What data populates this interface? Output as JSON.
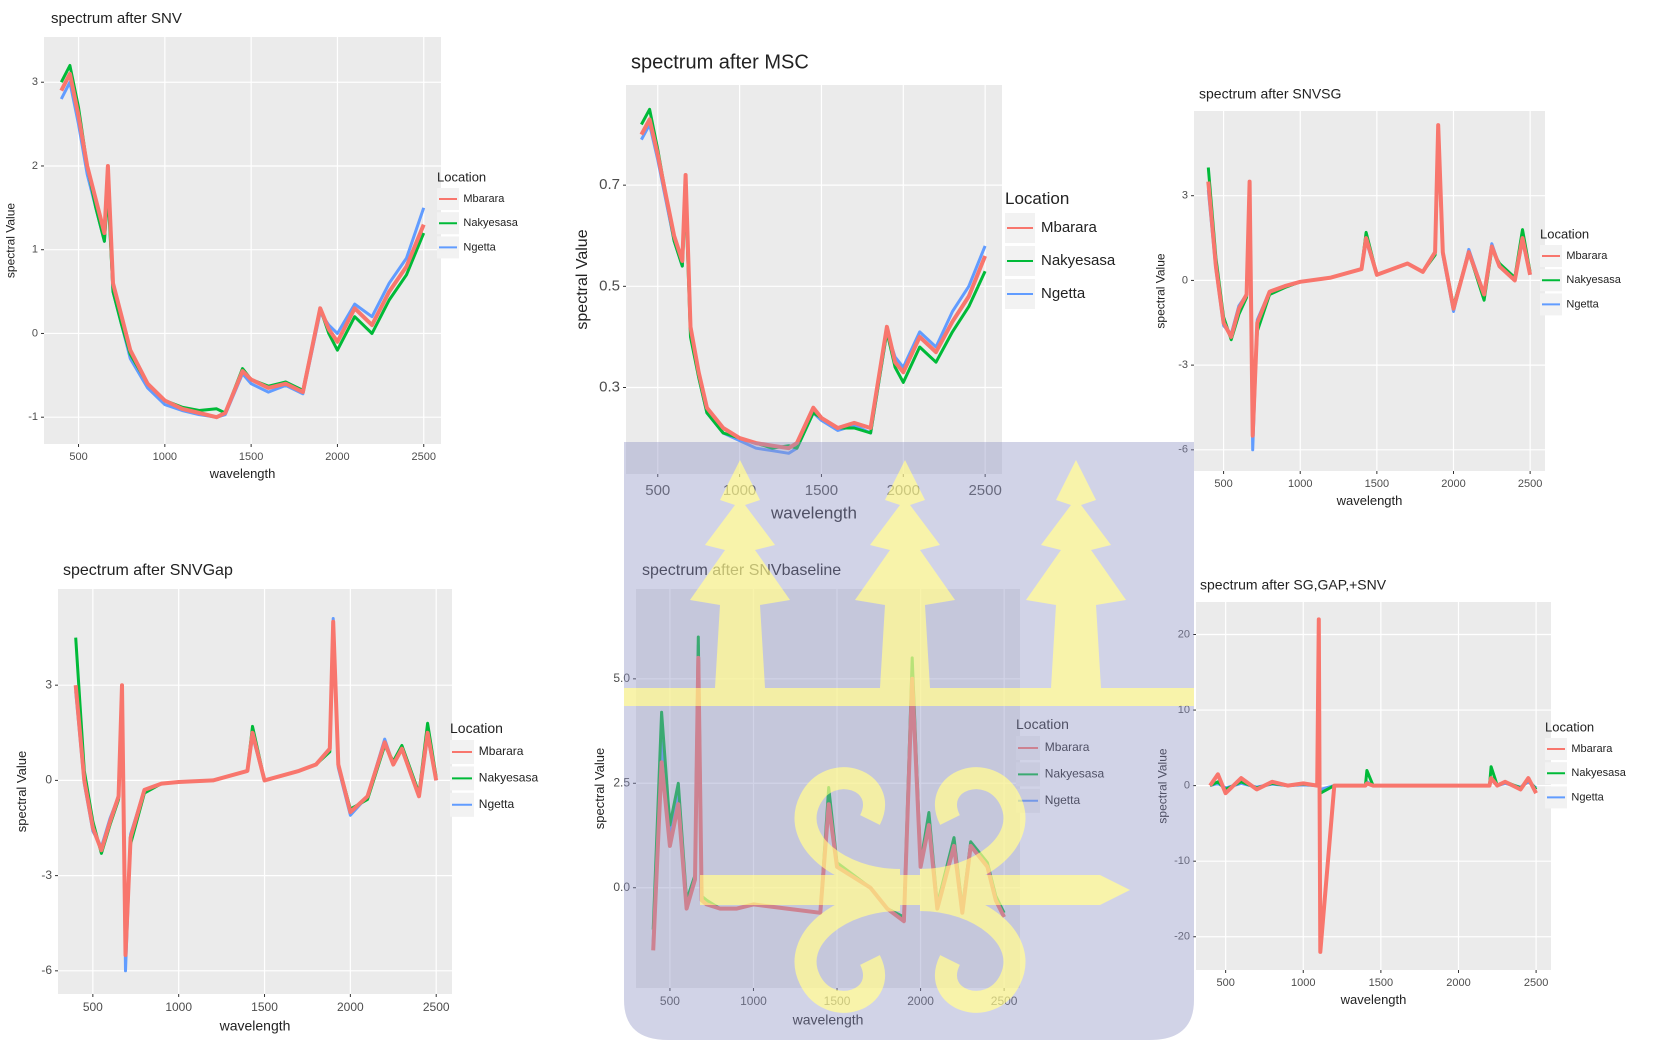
{
  "chart_data": [
    {
      "type": "line",
      "title": "spectrum after SNV",
      "x_label": "wavelength",
      "y_label": "spectral Value",
      "legend_title": "Location",
      "grid": true,
      "xlim": [
        300,
        2600
      ],
      "xticks": [
        500,
        1000,
        1500,
        2000,
        2500
      ],
      "ylim": [
        -1.32,
        3.54
      ],
      "yticks": [
        -1,
        0,
        1,
        2,
        3
      ],
      "x": [
        400,
        450,
        500,
        550,
        600,
        650,
        670,
        700,
        750,
        800,
        900,
        1000,
        1100,
        1200,
        1300,
        1350,
        1450,
        1500,
        1600,
        1700,
        1800,
        1900,
        1950,
        2000,
        2100,
        2200,
        2300,
        2400,
        2500
      ],
      "series": [
        {
          "name": "Mbarara",
          "color": "#F8766D",
          "values": [
            2.9,
            3.1,
            2.6,
            2.0,
            1.6,
            1.2,
            2.0,
            0.6,
            0.2,
            -0.2,
            -0.6,
            -0.8,
            -0.9,
            -0.95,
            -1.0,
            -0.95,
            -0.45,
            -0.55,
            -0.65,
            -0.6,
            -0.7,
            0.3,
            0.05,
            -0.1,
            0.3,
            0.1,
            0.5,
            0.8,
            1.3
          ]
        },
        {
          "name": "Nakyesasa",
          "color": "#00BA38",
          "values": [
            3.0,
            3.2,
            2.7,
            2.0,
            1.5,
            1.1,
            1.7,
            0.5,
            0.1,
            -0.25,
            -0.6,
            -0.8,
            -0.88,
            -0.92,
            -0.9,
            -0.95,
            -0.42,
            -0.55,
            -0.63,
            -0.58,
            -0.68,
            0.3,
            0.0,
            -0.2,
            0.2,
            0.0,
            0.4,
            0.7,
            1.2
          ]
        },
        {
          "name": "Ngetta",
          "color": "#619CFF",
          "values": [
            2.8,
            3.0,
            2.5,
            1.9,
            1.5,
            1.1,
            1.8,
            0.5,
            0.1,
            -0.3,
            -0.65,
            -0.85,
            -0.92,
            -0.97,
            -1.0,
            -0.97,
            -0.48,
            -0.6,
            -0.7,
            -0.62,
            -0.72,
            0.25,
            0.1,
            0.0,
            0.35,
            0.2,
            0.6,
            0.9,
            1.5
          ]
        }
      ]
    },
    {
      "type": "line",
      "title": "spectrum after MSC",
      "x_label": "wavelength",
      "y_label": "spectral Value",
      "legend_title": "Location",
      "grid": true,
      "xlim": [
        306,
        2603
      ],
      "xticks": [
        500,
        1000,
        1500,
        2000,
        2500
      ],
      "ylim": [
        0.129,
        0.898
      ],
      "yticks": [
        0.3,
        0.5,
        0.7
      ],
      "x": [
        400,
        450,
        500,
        550,
        600,
        650,
        670,
        700,
        750,
        800,
        900,
        1000,
        1100,
        1200,
        1300,
        1350,
        1450,
        1500,
        1600,
        1700,
        1800,
        1900,
        1950,
        2000,
        2100,
        2200,
        2300,
        2400,
        2500
      ],
      "series": [
        {
          "name": "Mbarara",
          "color": "#F8766D",
          "values": [
            0.8,
            0.83,
            0.76,
            0.68,
            0.6,
            0.55,
            0.72,
            0.42,
            0.33,
            0.26,
            0.22,
            0.2,
            0.19,
            0.185,
            0.18,
            0.19,
            0.26,
            0.24,
            0.22,
            0.23,
            0.22,
            0.42,
            0.35,
            0.33,
            0.4,
            0.37,
            0.43,
            0.48,
            0.56
          ]
        },
        {
          "name": "Nakyesasa",
          "color": "#00BA38",
          "values": [
            0.82,
            0.85,
            0.77,
            0.68,
            0.59,
            0.54,
            0.68,
            0.4,
            0.32,
            0.25,
            0.21,
            0.2,
            0.19,
            0.18,
            0.185,
            0.18,
            0.25,
            0.24,
            0.22,
            0.22,
            0.21,
            0.41,
            0.34,
            0.31,
            0.38,
            0.35,
            0.41,
            0.46,
            0.53
          ]
        },
        {
          "name": "Ngetta",
          "color": "#619CFF",
          "values": [
            0.79,
            0.82,
            0.75,
            0.67,
            0.59,
            0.54,
            0.7,
            0.41,
            0.32,
            0.25,
            0.21,
            0.195,
            0.18,
            0.175,
            0.17,
            0.18,
            0.25,
            0.235,
            0.215,
            0.225,
            0.21,
            0.41,
            0.36,
            0.34,
            0.41,
            0.38,
            0.45,
            0.5,
            0.58
          ]
        }
      ]
    },
    {
      "type": "line",
      "title": "spectrum after SNVSG",
      "x_label": "wavelength",
      "y_label": "spectral Value",
      "legend_title": "Location",
      "grid": true,
      "xlim": [
        307,
        2597
      ],
      "xticks": [
        500,
        1000,
        1500,
        2000,
        2500
      ],
      "ylim": [
        -6.75,
        6.0
      ],
      "yticks": [
        -6,
        -3,
        0,
        3
      ],
      "x": [
        400,
        450,
        500,
        550,
        600,
        650,
        670,
        690,
        720,
        800,
        900,
        1000,
        1200,
        1400,
        1430,
        1500,
        1700,
        1800,
        1880,
        1900,
        1930,
        2000,
        2100,
        2200,
        2250,
        2300,
        2400,
        2450,
        2500
      ],
      "series": [
        {
          "name": "Mbarara",
          "color": "#F8766D",
          "values": [
            3.5,
            0.5,
            -1.5,
            -2.0,
            -1.0,
            -0.5,
            3.5,
            -5.5,
            -1.5,
            -0.4,
            -0.2,
            -0.05,
            0.1,
            0.4,
            1.5,
            0.2,
            0.6,
            0.3,
            1.0,
            5.5,
            1.0,
            -1.0,
            1.0,
            -0.5,
            1.2,
            0.5,
            0.0,
            1.5,
            0.2
          ]
        },
        {
          "name": "Nakyesasa",
          "color": "#00BA38",
          "values": [
            4.0,
            0.8,
            -1.3,
            -2.1,
            -1.2,
            -0.6,
            3.0,
            -5.0,
            -1.8,
            -0.5,
            -0.25,
            -0.05,
            0.1,
            0.4,
            1.7,
            0.2,
            0.6,
            0.3,
            0.9,
            5.0,
            1.0,
            -0.9,
            1.0,
            -0.7,
            1.1,
            0.6,
            0.1,
            1.8,
            0.3
          ]
        },
        {
          "name": "Ngetta",
          "color": "#619CFF",
          "values": [
            3.2,
            0.4,
            -1.6,
            -1.9,
            -0.9,
            -0.5,
            3.2,
            -6.0,
            -1.4,
            -0.4,
            -0.2,
            -0.05,
            0.1,
            0.4,
            1.4,
            0.2,
            0.6,
            0.3,
            1.0,
            5.2,
            0.9,
            -1.1,
            1.1,
            -0.5,
            1.3,
            0.5,
            0.0,
            1.4,
            0.2
          ]
        }
      ]
    },
    {
      "type": "line",
      "title": "spectrum after SNVGap",
      "x_label": "wavelength",
      "y_label": "spectral Value",
      "legend_title": "Location",
      "grid": true,
      "xlim": [
        297,
        2592
      ],
      "xticks": [
        500,
        1000,
        1500,
        2000,
        2500
      ],
      "ylim": [
        -6.73,
        6.03
      ],
      "yticks": [
        -6,
        -3,
        0,
        3
      ],
      "x": [
        400,
        450,
        500,
        550,
        600,
        650,
        670,
        690,
        720,
        800,
        900,
        1000,
        1200,
        1400,
        1430,
        1500,
        1700,
        1800,
        1880,
        1900,
        1930,
        2000,
        2100,
        2200,
        2250,
        2300,
        2400,
        2450,
        2500
      ],
      "series": [
        {
          "name": "Mbarara",
          "color": "#F8766D",
          "values": [
            3.0,
            0.0,
            -1.5,
            -2.2,
            -1.3,
            -0.5,
            3.0,
            -5.5,
            -1.8,
            -0.3,
            -0.1,
            -0.05,
            0.0,
            0.3,
            1.5,
            0.0,
            0.3,
            0.5,
            1.0,
            5.0,
            0.5,
            -1.0,
            -0.5,
            1.2,
            0.5,
            1.0,
            -0.5,
            1.5,
            0.0
          ]
        },
        {
          "name": "Nakyesasa",
          "color": "#00BA38",
          "values": [
            4.5,
            0.3,
            -1.3,
            -2.3,
            -1.4,
            -0.6,
            2.8,
            -5.0,
            -2.0,
            -0.4,
            -0.1,
            -0.05,
            0.0,
            0.3,
            1.7,
            0.0,
            0.3,
            0.5,
            0.9,
            4.8,
            0.5,
            -0.9,
            -0.6,
            1.1,
            0.6,
            1.1,
            -0.4,
            1.8,
            0.1
          ]
        },
        {
          "name": "Ngetta",
          "color": "#619CFF",
          "values": [
            2.8,
            -0.1,
            -1.6,
            -2.1,
            -1.2,
            -0.5,
            2.9,
            -6.0,
            -1.7,
            -0.3,
            -0.1,
            -0.05,
            0.0,
            0.3,
            1.4,
            0.0,
            0.3,
            0.5,
            1.0,
            5.1,
            0.4,
            -1.1,
            -0.5,
            1.3,
            0.5,
            1.0,
            -0.5,
            1.4,
            0.0
          ]
        }
      ]
    },
    {
      "type": "line",
      "title": "spectrum after SNVbaseline",
      "x_label": "wavelength",
      "y_label": "spectral Value",
      "legend_title": "Location",
      "grid": true,
      "xlim": [
        297,
        2595
      ],
      "xticks": [
        500,
        1000,
        1500,
        2000,
        2500
      ],
      "ylim": [
        -2.4,
        7.15
      ],
      "yticks": [
        {
          "value": 0,
          "label": "0.0"
        },
        {
          "value": 2.5,
          "label": "2.5"
        },
        {
          "value": 5,
          "label": "5.0"
        }
      ],
      "x": [
        400,
        450,
        500,
        550,
        600,
        650,
        670,
        690,
        720,
        800,
        900,
        1000,
        1200,
        1400,
        1450,
        1500,
        1700,
        1800,
        1900,
        1950,
        2000,
        2050,
        2100,
        2200,
        2250,
        2300,
        2400,
        2450,
        2500
      ],
      "series": [
        {
          "name": "Mbarara",
          "color": "#F8766D",
          "values": [
            -1.5,
            3.0,
            1.0,
            2.0,
            -0.5,
            0.2,
            5.5,
            -0.3,
            -0.4,
            -0.5,
            -0.5,
            -0.4,
            -0.5,
            -0.6,
            2.0,
            0.5,
            0.0,
            -0.5,
            -0.8,
            5.0,
            0.5,
            1.5,
            -0.5,
            1.0,
            -0.6,
            1.0,
            0.5,
            -0.3,
            -0.7
          ]
        },
        {
          "name": "Nakyesasa",
          "color": "#00BA38",
          "values": [
            -1.0,
            4.2,
            1.5,
            2.5,
            -0.3,
            0.3,
            6.0,
            -0.2,
            -0.3,
            -0.5,
            -0.5,
            -0.4,
            -0.5,
            -0.6,
            2.4,
            0.6,
            0.0,
            -0.5,
            -0.7,
            5.5,
            0.6,
            1.8,
            -0.4,
            1.2,
            -0.5,
            1.1,
            0.6,
            -0.2,
            -0.6
          ]
        },
        {
          "name": "Ngetta",
          "color": "#619CFF",
          "values": [
            -1.3,
            3.5,
            1.2,
            2.2,
            -0.4,
            0.2,
            5.8,
            -0.3,
            -0.4,
            -0.5,
            -0.5,
            -0.4,
            -0.5,
            -0.6,
            2.1,
            0.5,
            0.0,
            -0.5,
            -0.8,
            5.2,
            0.5,
            1.6,
            -0.5,
            1.0,
            -0.6,
            1.0,
            0.5,
            -0.3,
            -0.7
          ]
        }
      ]
    },
    {
      "type": "line",
      "title": "spectrum after SG,GAP,+SNV",
      "x_label": "wavelength",
      "y_label": "spectral Value",
      "legend_title": "Location",
      "grid": true,
      "xlim": [
        309,
        2596
      ],
      "xticks": [
        500,
        1000,
        1500,
        2000,
        2500
      ],
      "ylim": [
        -24.4,
        24.3
      ],
      "yticks": [
        -20,
        -10,
        0,
        10,
        20
      ],
      "x": [
        400,
        450,
        500,
        600,
        700,
        800,
        900,
        1000,
        1090,
        1100,
        1110,
        1200,
        1400,
        1410,
        1450,
        1600,
        1800,
        2000,
        2200,
        2210,
        2250,
        2300,
        2400,
        2450,
        2500
      ],
      "series": [
        {
          "name": "Mbarara",
          "color": "#F8766D",
          "values": [
            0,
            1.5,
            -1,
            1,
            -0.5,
            0.5,
            0,
            0.3,
            0,
            22,
            -22,
            0,
            0,
            0.3,
            0,
            0,
            0,
            0,
            0,
            1,
            0,
            0.5,
            -0.5,
            1,
            -1
          ]
        },
        {
          "name": "Nakyesasa",
          "color": "#00BA38",
          "values": [
            0,
            0.5,
            -0.5,
            0.5,
            -0.3,
            0.3,
            0,
            0.2,
            0,
            1,
            -1,
            0,
            0,
            2,
            0,
            0,
            0,
            0,
            0,
            2.5,
            0,
            0.5,
            -0.3,
            0.8,
            -0.5
          ]
        },
        {
          "name": "Ngetta",
          "color": "#619CFF",
          "values": [
            0,
            0.3,
            -0.3,
            0.3,
            -0.2,
            0.2,
            0,
            0.1,
            0,
            0.5,
            -0.5,
            0,
            0,
            0.5,
            0,
            0,
            0,
            0,
            0,
            0.8,
            0,
            0.3,
            -0.2,
            0.5,
            -0.3
          ]
        }
      ]
    }
  ]
}
